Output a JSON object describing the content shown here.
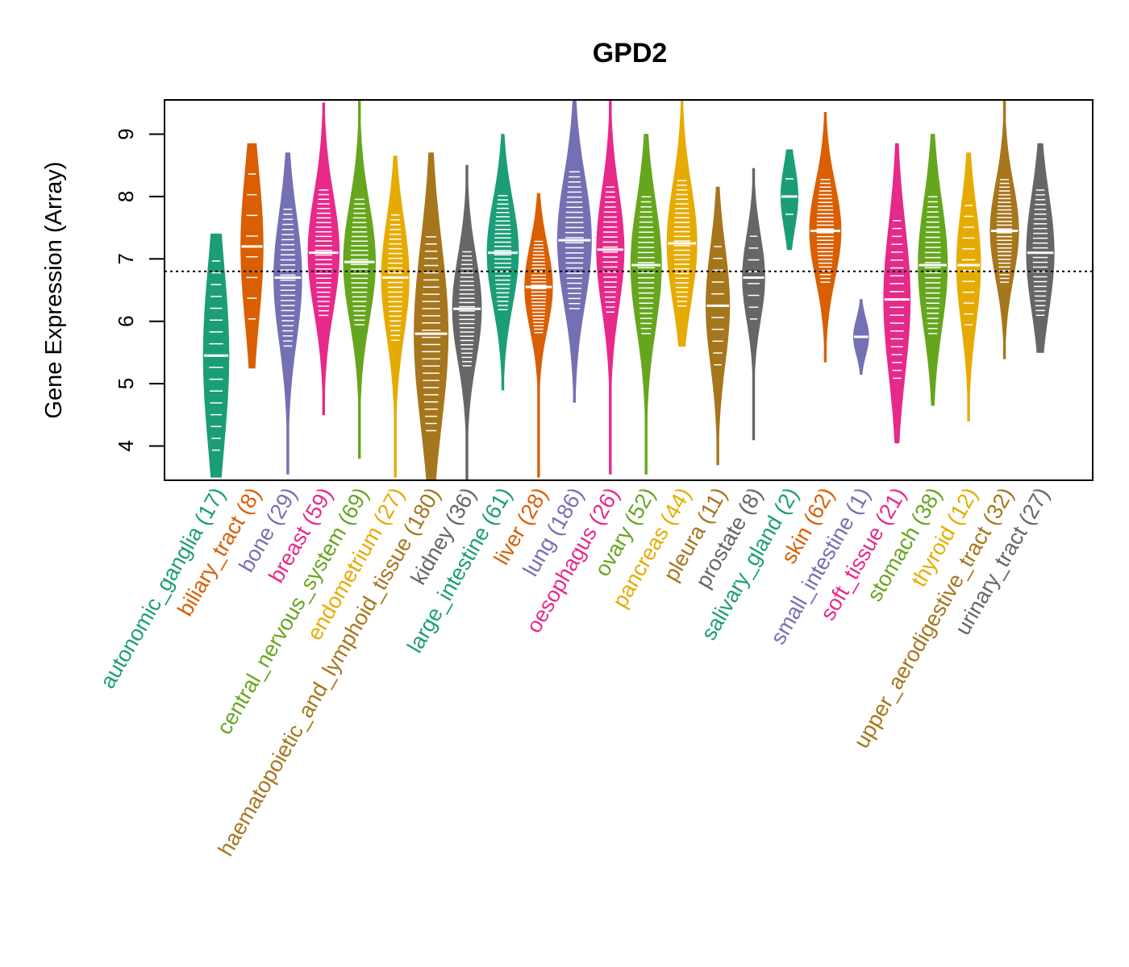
{
  "chart_data": {
    "type": "violin",
    "title": "GPD2",
    "xlabel": "",
    "ylabel": "Gene Expression (Array)",
    "ylim": [
      3.45,
      9.55
    ],
    "yticks": [
      4,
      5,
      6,
      7,
      8,
      9
    ],
    "reference_line": 6.8,
    "grid": false,
    "legend": "none",
    "categories": [
      {
        "name": "autonomic_ganglia",
        "n": 17,
        "color": "#1B9E77",
        "min": 3.5,
        "max": 7.4,
        "median": 5.45,
        "q1": 4.6,
        "q3": 6.3
      },
      {
        "name": "biliary_tract",
        "n": 8,
        "color": "#D95F02",
        "min": 5.25,
        "max": 8.85,
        "median": 7.2,
        "q1": 6.5,
        "q3": 7.9
      },
      {
        "name": "bone",
        "n": 29,
        "color": "#7570B3",
        "min": 3.55,
        "max": 8.7,
        "median": 6.7,
        "q1": 6.1,
        "q3": 7.3
      },
      {
        "name": "breast",
        "n": 59,
        "color": "#E7298A",
        "min": 4.5,
        "max": 9.5,
        "median": 7.1,
        "q1": 6.5,
        "q3": 7.6
      },
      {
        "name": "central_nervous_system",
        "n": 69,
        "color": "#66A61E",
        "min": 3.8,
        "max": 9.55,
        "median": 6.95,
        "q1": 6.4,
        "q3": 7.5
      },
      {
        "name": "endometrium",
        "n": 27,
        "color": "#E6AB02",
        "min": 3.5,
        "max": 8.65,
        "median": 6.7,
        "q1": 6.2,
        "q3": 7.3
      },
      {
        "name": "haematopoietic_and_lymphoid_tissue",
        "n": 180,
        "color": "#A6761D",
        "min": 3.45,
        "max": 8.7,
        "median": 5.8,
        "q1": 5.0,
        "q3": 6.7
      },
      {
        "name": "kidney",
        "n": 36,
        "color": "#666666",
        "min": 3.45,
        "max": 8.5,
        "median": 6.2,
        "q1": 5.7,
        "q3": 6.7
      },
      {
        "name": "large_intestine",
        "n": 61,
        "color": "#1B9E77",
        "min": 4.9,
        "max": 9.0,
        "median": 7.1,
        "q1": 6.6,
        "q3": 7.6
      },
      {
        "name": "liver",
        "n": 28,
        "color": "#D95F02",
        "min": 3.5,
        "max": 8.05,
        "median": 6.55,
        "q1": 6.2,
        "q3": 7.0
      },
      {
        "name": "lung",
        "n": 186,
        "color": "#7570B3",
        "min": 4.7,
        "max": 9.55,
        "median": 7.3,
        "q1": 6.7,
        "q3": 7.9
      },
      {
        "name": "oesophagus",
        "n": 26,
        "color": "#E7298A",
        "min": 3.55,
        "max": 9.55,
        "median": 7.15,
        "q1": 6.6,
        "q3": 7.7
      },
      {
        "name": "ovary",
        "n": 52,
        "color": "#66A61E",
        "min": 3.55,
        "max": 9.0,
        "median": 6.9,
        "q1": 6.3,
        "q3": 7.5
      },
      {
        "name": "pancreas",
        "n": 44,
        "color": "#E6AB02",
        "min": 5.6,
        "max": 9.55,
        "median": 7.25,
        "q1": 6.7,
        "q3": 7.8
      },
      {
        "name": "pleura",
        "n": 11,
        "color": "#A6761D",
        "min": 3.7,
        "max": 8.15,
        "median": 6.25,
        "q1": 5.6,
        "q3": 6.7
      },
      {
        "name": "prostate",
        "n": 8,
        "color": "#666666",
        "min": 4.1,
        "max": 8.45,
        "median": 6.7,
        "q1": 6.3,
        "q3": 7.1
      },
      {
        "name": "salivary_gland",
        "n": 2,
        "color": "#1B9E77",
        "min": 7.15,
        "max": 8.75,
        "median": 8.0,
        "q1": 7.7,
        "q3": 8.3
      },
      {
        "name": "skin",
        "n": 62,
        "color": "#D95F02",
        "min": 5.35,
        "max": 9.35,
        "median": 7.45,
        "q1": 7.0,
        "q3": 7.9
      },
      {
        "name": "small_intestine",
        "n": 1,
        "color": "#7570B3",
        "min": 5.15,
        "max": 6.35,
        "median": 5.75,
        "q1": 5.6,
        "q3": 5.9
      },
      {
        "name": "soft_tissue",
        "n": 21,
        "color": "#E7298A",
        "min": 4.05,
        "max": 8.85,
        "median": 6.35,
        "q1": 5.6,
        "q3": 7.0
      },
      {
        "name": "stomach",
        "n": 38,
        "color": "#66A61E",
        "min": 4.65,
        "max": 9.0,
        "median": 6.9,
        "q1": 6.3,
        "q3": 7.5
      },
      {
        "name": "thyroid",
        "n": 12,
        "color": "#E6AB02",
        "min": 4.4,
        "max": 8.7,
        "median": 6.9,
        "q1": 6.4,
        "q3": 7.5
      },
      {
        "name": "upper_aerodigestive_tract",
        "n": 32,
        "color": "#A6761D",
        "min": 5.4,
        "max": 9.55,
        "median": 7.45,
        "q1": 7.0,
        "q3": 7.9
      },
      {
        "name": "urinary_tract",
        "n": 27,
        "color": "#666666",
        "min": 5.5,
        "max": 8.85,
        "median": 7.1,
        "q1": 6.5,
        "q3": 7.6
      }
    ]
  }
}
